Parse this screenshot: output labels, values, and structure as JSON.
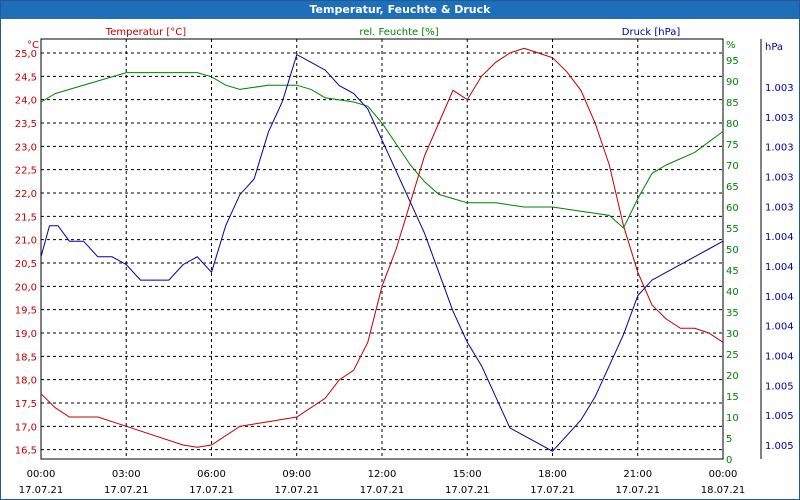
{
  "window": {
    "title": "Temperatur, Feuchte & Druck"
  },
  "chart_data": {
    "type": "line",
    "grid": true,
    "x_axis": {
      "ticks": [
        {
          "time": "00:00",
          "date": "17.07.21"
        },
        {
          "time": "03:00",
          "date": "17.07.21"
        },
        {
          "time": "06:00",
          "date": "17.07.21"
        },
        {
          "time": "09:00",
          "date": "17.07.21"
        },
        {
          "time": "12:00",
          "date": "17.07.21"
        },
        {
          "time": "15:00",
          "date": "17.07.21"
        },
        {
          "time": "18:00",
          "date": "17.07.21"
        },
        {
          "time": "21:00",
          "date": "17.07.21"
        },
        {
          "time": "00:00",
          "date": "18.07.21"
        }
      ],
      "range_hours": [
        0,
        24
      ]
    },
    "axes": {
      "left": {
        "label": "Temperatur [°C]",
        "unit": "°C",
        "color": "#c00000",
        "ticks": [
          "16,5",
          "17,0",
          "17,5",
          "18,0",
          "18,5",
          "19,0",
          "19,5",
          "20,0",
          "20,5",
          "21,0",
          "21,5",
          "22,0",
          "22,5",
          "23,0",
          "23,5",
          "24,0",
          "24,5",
          "25,0"
        ],
        "range": [
          16.3,
          25.3
        ]
      },
      "right1": {
        "label": "rel. Feuchte [%]",
        "unit": "%",
        "color": "#008000",
        "ticks": [
          "0",
          "5",
          "10",
          "15",
          "20",
          "25",
          "30",
          "35",
          "40",
          "45",
          "50",
          "55",
          "60",
          "65",
          "70",
          "75",
          "80",
          "85",
          "90",
          "95"
        ],
        "range": [
          0,
          100
        ]
      },
      "right2": {
        "label": "Druck [hPa]",
        "unit": "hPa",
        "color": "#0000a0",
        "ticks": [
          "1.003",
          "1.003",
          "1.003",
          "1.003",
          "1.003",
          "1.004",
          "1.004",
          "1.004",
          "1.004",
          "1.004",
          "1.005",
          "1.005",
          "1.005"
        ],
        "range": [
          1002.8,
          1005.5
        ]
      }
    },
    "series": [
      {
        "name": "Temperatur [°C]",
        "axis": "left",
        "color": "#c00000",
        "x": [
          0,
          0.5,
          1,
          2,
          3,
          4,
          5,
          5.5,
          6,
          7,
          8,
          9,
          10,
          10.5,
          11,
          11.5,
          12,
          12.5,
          13,
          13.5,
          14,
          14.5,
          15,
          15.5,
          16,
          16.5,
          17,
          17.5,
          18,
          18.5,
          19,
          19.5,
          20,
          20.5,
          21,
          21.5,
          22,
          22.5,
          23,
          23.5,
          24
        ],
        "y": [
          17.7,
          17.4,
          17.2,
          17.2,
          17.0,
          16.8,
          16.6,
          16.55,
          16.6,
          17.0,
          17.1,
          17.2,
          17.6,
          18.0,
          18.2,
          18.8,
          20.0,
          20.8,
          21.8,
          22.8,
          23.5,
          24.2,
          24.0,
          24.5,
          24.8,
          25.0,
          25.1,
          25.0,
          24.9,
          24.6,
          24.2,
          23.5,
          22.6,
          21.3,
          20.3,
          19.6,
          19.3,
          19.1,
          19.1,
          19.0,
          18.8
        ]
      },
      {
        "name": "rel. Feuchte [%]",
        "axis": "right1",
        "color": "#008000",
        "x": [
          0,
          0.5,
          1,
          2,
          3,
          4,
          5,
          5.5,
          6,
          6.5,
          7,
          8,
          9,
          9.5,
          10,
          11,
          11.5,
          12,
          12.5,
          13,
          13.5,
          14,
          14.5,
          15,
          16,
          17,
          18,
          19,
          20,
          20.5,
          21,
          21.5,
          22,
          23,
          24
        ],
        "y": [
          85,
          87,
          88,
          90,
          92,
          92,
          92,
          92,
          91,
          89,
          88,
          89,
          89,
          88,
          86,
          85,
          84,
          80,
          75,
          70,
          66,
          63,
          62,
          61,
          61,
          60,
          60,
          59,
          58,
          55,
          62,
          68,
          70,
          73,
          78
        ]
      },
      {
        "name": "Druck [hPa]",
        "axis": "right2",
        "color": "#0000a0",
        "x": [
          0,
          0.3,
          0.6,
          1,
          1.5,
          2,
          2.5,
          3,
          3.5,
          4,
          4.5,
          5,
          5.5,
          6,
          6.5,
          7,
          7.5,
          8,
          8.5,
          9,
          9.5,
          10,
          10.5,
          11,
          11.5,
          12,
          12.5,
          13,
          13.5,
          14,
          14.5,
          15,
          15.5,
          16,
          16.5,
          17,
          17.5,
          18,
          18.5,
          19,
          19.5,
          20,
          20.5,
          21,
          21.5,
          22,
          22.5,
          23,
          23.5,
          24
        ],
        "y": [
          1004.1,
          1004.3,
          1004.3,
          1004.2,
          1004.2,
          1004.1,
          1004.1,
          1004.05,
          1003.95,
          1003.95,
          1003.95,
          1004.05,
          1004.1,
          1004.0,
          1004.3,
          1004.5,
          1004.6,
          1004.9,
          1005.1,
          1005.4,
          1005.35,
          1005.3,
          1005.2,
          1005.15,
          1005.05,
          1004.85,
          1004.65,
          1004.45,
          1004.25,
          1004.0,
          1003.75,
          1003.55,
          1003.4,
          1003.2,
          1003.0,
          1002.95,
          1002.9,
          1002.85,
          1002.95,
          1003.05,
          1003.2,
          1003.4,
          1003.6,
          1003.85,
          1003.95,
          1004.0,
          1004.05,
          1004.1,
          1004.15,
          1004.2
        ]
      }
    ]
  }
}
